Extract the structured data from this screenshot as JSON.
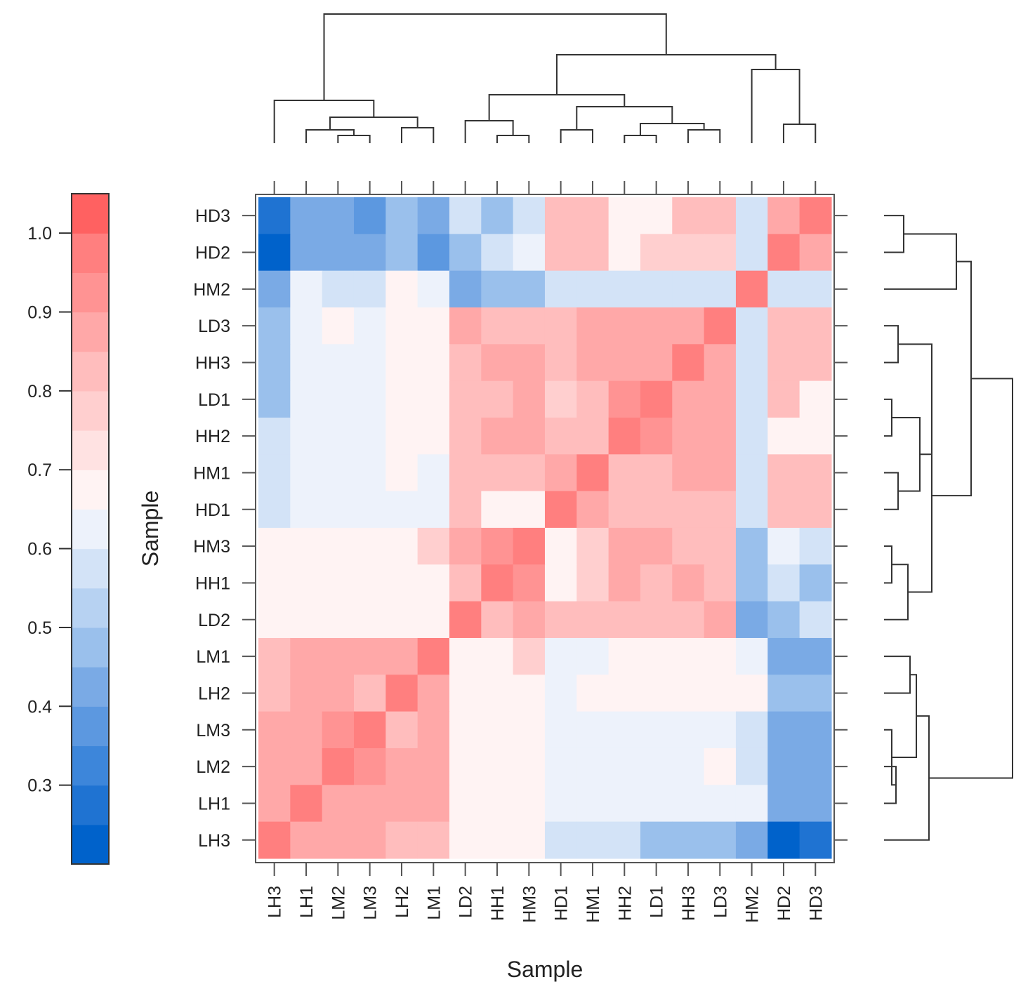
{
  "chart_data": {
    "type": "heatmap",
    "title": "",
    "xlabel": "Sample",
    "ylabel": "Sample",
    "x_order": [
      "LH3",
      "LH1",
      "LM2",
      "LM3",
      "LH2",
      "LM1",
      "LD2",
      "HH1",
      "HM3",
      "HD1",
      "HM1",
      "HH2",
      "LD1",
      "HH3",
      "LD3",
      "HM2",
      "HD2",
      "HD3"
    ],
    "y_order_top_to_bottom": [
      "HD3",
      "HD2",
      "HM2",
      "LD3",
      "HH3",
      "LD1",
      "HH2",
      "HM1",
      "HD1",
      "HM3",
      "HH1",
      "LD2",
      "LM1",
      "LH2",
      "LM3",
      "LM2",
      "LH1",
      "LH3"
    ],
    "values": [
      [
        0.27,
        0.44,
        0.44,
        0.39,
        0.48,
        0.45,
        0.55,
        0.5,
        0.55,
        0.8,
        0.8,
        0.65,
        0.7,
        0.8,
        0.84,
        0.55,
        0.86,
        0.96
      ],
      [
        0.21,
        0.4,
        0.4,
        0.4,
        0.48,
        0.38,
        0.5,
        0.55,
        0.61,
        0.8,
        0.84,
        0.7,
        0.75,
        0.75,
        0.75,
        0.55,
        0.96,
        0.86
      ],
      [
        0.45,
        0.61,
        0.55,
        0.55,
        0.65,
        0.61,
        0.45,
        0.5,
        0.5,
        0.55,
        0.55,
        0.55,
        0.55,
        0.55,
        0.55,
        0.96,
        0.55,
        0.55
      ],
      [
        0.5,
        0.61,
        0.65,
        0.61,
        0.7,
        0.65,
        0.86,
        0.84,
        0.84,
        0.84,
        0.86,
        0.86,
        0.9,
        0.9,
        0.96,
        0.55,
        0.8,
        0.84
      ],
      [
        0.5,
        0.61,
        0.61,
        0.61,
        0.65,
        0.65,
        0.84,
        0.86,
        0.86,
        0.84,
        0.86,
        0.86,
        0.86,
        0.96,
        0.9,
        0.55,
        0.8,
        0.8
      ],
      [
        0.5,
        0.61,
        0.61,
        0.61,
        0.7,
        0.65,
        0.84,
        0.8,
        0.86,
        0.75,
        0.8,
        0.92,
        0.96,
        0.86,
        0.9,
        0.55,
        0.8,
        0.7
      ],
      [
        0.55,
        0.61,
        0.61,
        0.61,
        0.7,
        0.65,
        0.84,
        0.86,
        0.86,
        0.8,
        0.84,
        0.96,
        0.92,
        0.86,
        0.86,
        0.55,
        0.7,
        0.65
      ],
      [
        0.55,
        0.61,
        0.61,
        0.61,
        0.65,
        0.61,
        0.8,
        0.8,
        0.8,
        0.9,
        0.96,
        0.84,
        0.84,
        0.86,
        0.86,
        0.55,
        0.84,
        0.84
      ],
      [
        0.55,
        0.61,
        0.61,
        0.61,
        0.61,
        0.61,
        0.8,
        0.7,
        0.7,
        0.96,
        0.9,
        0.8,
        0.8,
        0.84,
        0.84,
        0.55,
        0.8,
        0.84
      ],
      [
        0.65,
        0.65,
        0.65,
        0.7,
        0.7,
        0.75,
        0.86,
        0.92,
        0.96,
        0.7,
        0.75,
        0.86,
        0.86,
        0.84,
        0.84,
        0.5,
        0.61,
        0.55
      ],
      [
        0.65,
        0.65,
        0.65,
        0.7,
        0.65,
        0.7,
        0.84,
        0.96,
        0.92,
        0.7,
        0.75,
        0.86,
        0.84,
        0.86,
        0.84,
        0.5,
        0.55,
        0.5
      ],
      [
        0.65,
        0.65,
        0.7,
        0.7,
        0.65,
        0.7,
        0.96,
        0.84,
        0.86,
        0.8,
        0.8,
        0.84,
        0.84,
        0.84,
        0.86,
        0.45,
        0.5,
        0.55
      ],
      [
        0.84,
        0.86,
        0.86,
        0.86,
        0.86,
        0.96,
        0.7,
        0.7,
        0.75,
        0.61,
        0.61,
        0.65,
        0.65,
        0.65,
        0.65,
        0.61,
        0.4,
        0.45
      ],
      [
        0.8,
        0.86,
        0.86,
        0.84,
        0.96,
        0.86,
        0.65,
        0.65,
        0.7,
        0.61,
        0.65,
        0.7,
        0.7,
        0.65,
        0.7,
        0.65,
        0.48,
        0.48
      ],
      [
        0.86,
        0.86,
        0.92,
        0.96,
        0.84,
        0.86,
        0.7,
        0.7,
        0.7,
        0.61,
        0.61,
        0.61,
        0.61,
        0.61,
        0.61,
        0.55,
        0.4,
        0.4
      ],
      [
        0.86,
        0.86,
        0.96,
        0.92,
        0.86,
        0.86,
        0.7,
        0.65,
        0.65,
        0.61,
        0.61,
        0.61,
        0.61,
        0.61,
        0.65,
        0.55,
        0.4,
        0.45
      ],
      [
        0.86,
        0.96,
        0.86,
        0.86,
        0.86,
        0.86,
        0.65,
        0.65,
        0.65,
        0.61,
        0.61,
        0.61,
        0.61,
        0.61,
        0.61,
        0.61,
        0.4,
        0.45
      ],
      [
        0.96,
        0.86,
        0.86,
        0.86,
        0.8,
        0.84,
        0.65,
        0.65,
        0.65,
        0.55,
        0.55,
        0.55,
        0.5,
        0.5,
        0.5,
        0.45,
        0.21,
        0.3
      ]
    ],
    "colorbar": {
      "range": [
        0.2,
        1.05
      ],
      "ticks": [
        0.3,
        0.4,
        0.5,
        0.6,
        0.7,
        0.8,
        0.9,
        1.0
      ],
      "tick_labels": [
        "0.3",
        "0.4",
        "0.5",
        "0.6",
        "0.7",
        "0.8",
        "0.9",
        "1.0"
      ],
      "colors_low_to_high": [
        "#0062cb",
        "#1f73d2",
        "#3d86da",
        "#5c98e0",
        "#7aaae5",
        "#9ac0ec",
        "#b7d2f2",
        "#d3e3f7",
        "#edf2fb",
        "#fff3f3",
        "#ffe2e2",
        "#ffcfcf",
        "#ffbdbd",
        "#ffa8a8",
        "#ff9393",
        "#ff7f7f",
        "#ff6161"
      ]
    },
    "legend_position": "left",
    "dendrogram": {
      "merges": [
        [
          "LM2",
          "LM3"
        ],
        [
          "LH1",
          "LM2+LM3"
        ],
        [
          "LH2",
          "LM1"
        ],
        [
          "LH1 group",
          "LH2+LM1"
        ],
        [
          "LH3",
          "rest of L group"
        ],
        [
          "HH1",
          "HM3"
        ],
        [
          "LD2",
          "HH1+HM3"
        ],
        [
          "HD1",
          "HM1"
        ],
        [
          "HH2",
          "LD1"
        ],
        [
          "HH3",
          "LD3"
        ],
        [
          "HH2+LD1",
          "HH3+LD3"
        ],
        [
          "HD1+HM1",
          "HH2 group"
        ],
        [
          "LD2 group",
          "HD1 group"
        ],
        [
          "HD2",
          "HD3"
        ],
        [
          "HM2",
          "HD2+HD3"
        ],
        [
          "H/LD group",
          "HM2 group"
        ],
        [
          "L group",
          "H group"
        ]
      ]
    }
  }
}
